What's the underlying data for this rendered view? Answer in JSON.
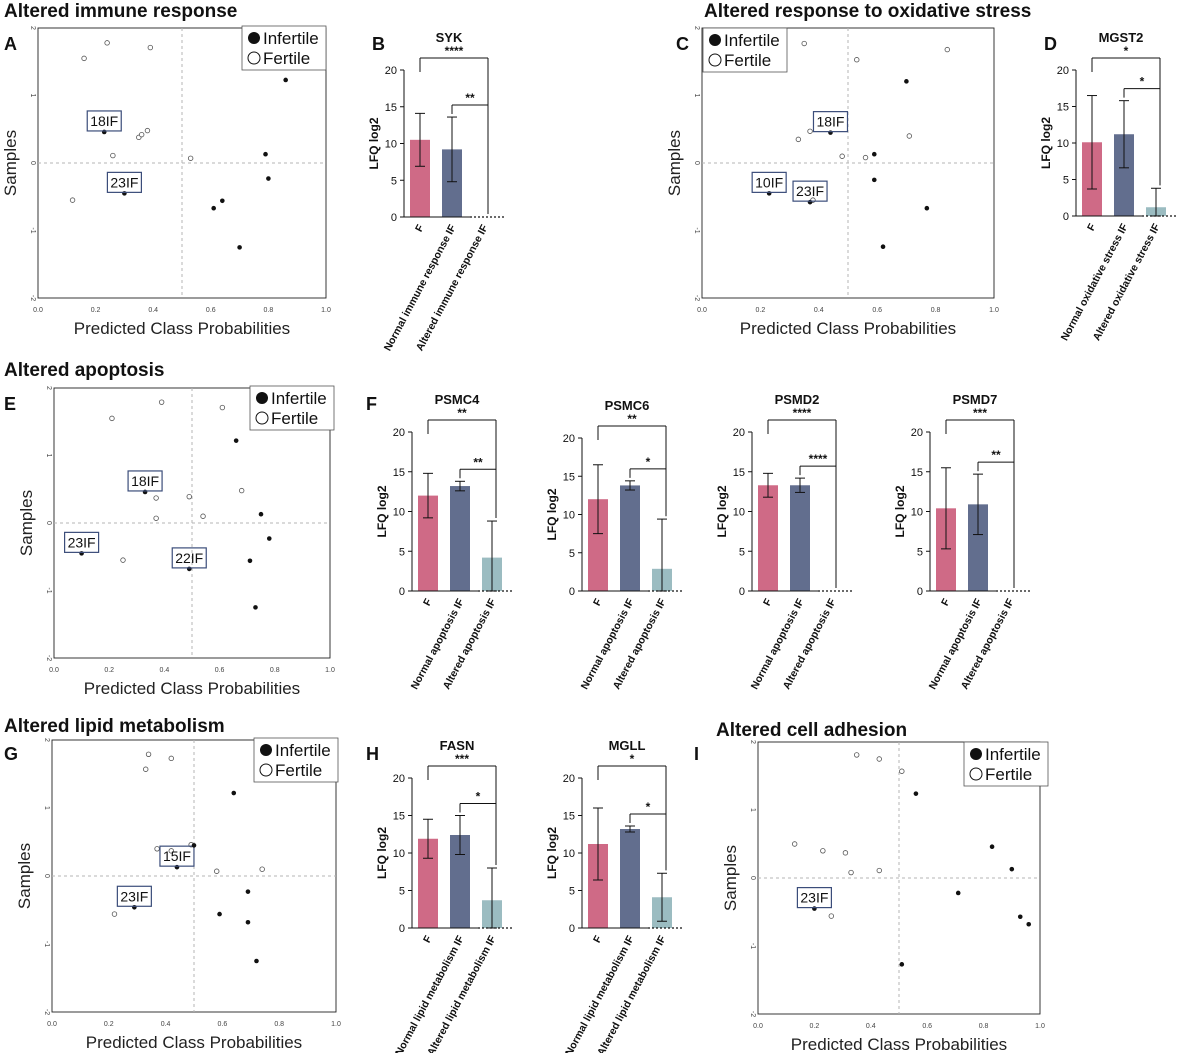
{
  "colors": {
    "female": "#cf6a86",
    "normal": "#626e8e",
    "altered": "#9bbcc1",
    "annot_border": "#3b4d7a",
    "grid": "#b5b5b5"
  },
  "legend": {
    "infertile": "Infertile",
    "fertile": "Fertile"
  },
  "common": {
    "scatter_xlabel": "Predicted Class Probabilities",
    "scatter_ylabel": "Samples",
    "bar_ylabel": "LFQ log2",
    "x_ticks": [
      "0.0",
      "0.2",
      "0.4",
      "0.6",
      "0.8",
      "1.0"
    ],
    "y_ticks": [
      "-2",
      "-1",
      "0",
      "1",
      "2"
    ]
  },
  "sections": [
    {
      "title": "Altered immune response"
    },
    {
      "title": "Altered response to oxidative stress"
    },
    {
      "title": "Altered apoptosis"
    },
    {
      "title": "Altered lipid metabolism"
    },
    {
      "title": "Altered cell adhesion"
    }
  ],
  "panel_letters": [
    "A",
    "B",
    "C",
    "D",
    "E",
    "F",
    "G",
    "H",
    "I"
  ],
  "chart_data": [
    {
      "panel": "A",
      "type": "scatter",
      "section": "Altered immune response",
      "xlabel": "Predicted Class Probabilities",
      "ylabel": "Samples",
      "xlim": [
        0,
        1
      ],
      "ylim": [
        -2,
        2
      ],
      "reference_lines": {
        "x": 0.5,
        "y": 0
      },
      "legend": [
        "Infertile",
        "Fertile"
      ],
      "points": [
        {
          "x": 0.16,
          "y": 1.55,
          "group": "fertile"
        },
        {
          "x": 0.24,
          "y": 1.78,
          "group": "fertile"
        },
        {
          "x": 0.39,
          "y": 1.71,
          "group": "fertile"
        },
        {
          "x": 0.35,
          "y": 0.38,
          "group": "fertile"
        },
        {
          "x": 0.36,
          "y": 0.42,
          "group": "fertile"
        },
        {
          "x": 0.38,
          "y": 0.48,
          "group": "fertile"
        },
        {
          "x": 0.26,
          "y": 0.11,
          "group": "fertile"
        },
        {
          "x": 0.53,
          "y": 0.07,
          "group": "fertile"
        },
        {
          "x": 0.12,
          "y": -0.55,
          "group": "fertile"
        },
        {
          "x": 0.23,
          "y": 0.46,
          "group": "infertile",
          "label": "18IF"
        },
        {
          "x": 0.3,
          "y": -0.45,
          "group": "infertile",
          "label": "23IF"
        },
        {
          "x": 0.86,
          "y": 1.23,
          "group": "infertile"
        },
        {
          "x": 0.79,
          "y": 0.13,
          "group": "infertile"
        },
        {
          "x": 0.8,
          "y": -0.23,
          "group": "infertile"
        },
        {
          "x": 0.64,
          "y": -0.56,
          "group": "infertile"
        },
        {
          "x": 0.61,
          "y": -0.67,
          "group": "infertile"
        },
        {
          "x": 0.7,
          "y": -1.25,
          "group": "infertile"
        }
      ]
    },
    {
      "panel": "B",
      "type": "bar",
      "title": "SYK",
      "ylabel": "LFQ log2",
      "ylim": [
        0,
        20
      ],
      "categories": [
        "F",
        "Normal immune response IF",
        "Altered immune response IF"
      ],
      "values": [
        10.5,
        9.2,
        0
      ],
      "errors": [
        3.6,
        4.4,
        0
      ],
      "significance": [
        {
          "from": 0,
          "to": 2,
          "label": "****"
        },
        {
          "from": 1,
          "to": 2,
          "label": "**"
        }
      ]
    },
    {
      "panel": "C",
      "type": "scatter",
      "section": "Altered response to oxidative stress",
      "xlabel": "Predicted Class Probabilities",
      "ylabel": "Samples",
      "xlim": [
        0,
        1
      ],
      "ylim": [
        -2,
        2
      ],
      "reference_lines": {
        "x": 0.5,
        "y": 0
      },
      "legend": [
        "Infertile",
        "Fertile"
      ],
      "points": [
        {
          "x": 0.35,
          "y": 1.77,
          "group": "fertile"
        },
        {
          "x": 0.53,
          "y": 1.53,
          "group": "fertile"
        },
        {
          "x": 0.84,
          "y": 1.68,
          "group": "fertile"
        },
        {
          "x": 0.33,
          "y": 0.35,
          "group": "fertile"
        },
        {
          "x": 0.37,
          "y": 0.47,
          "group": "fertile"
        },
        {
          "x": 0.48,
          "y": 0.1,
          "group": "fertile"
        },
        {
          "x": 0.56,
          "y": 0.08,
          "group": "fertile"
        },
        {
          "x": 0.71,
          "y": 0.4,
          "group": "fertile"
        },
        {
          "x": 0.38,
          "y": -0.55,
          "group": "fertile"
        },
        {
          "x": 0.44,
          "y": 0.45,
          "group": "infertile",
          "label": "18IF"
        },
        {
          "x": 0.23,
          "y": -0.45,
          "group": "infertile",
          "label": "10IF"
        },
        {
          "x": 0.37,
          "y": -0.58,
          "group": "infertile",
          "label": "23IF"
        },
        {
          "x": 0.7,
          "y": 1.21,
          "group": "infertile"
        },
        {
          "x": 0.59,
          "y": 0.13,
          "group": "infertile"
        },
        {
          "x": 0.59,
          "y": -0.25,
          "group": "infertile"
        },
        {
          "x": 0.77,
          "y": -0.67,
          "group": "infertile"
        },
        {
          "x": 0.62,
          "y": -1.24,
          "group": "infertile"
        }
      ]
    },
    {
      "panel": "D",
      "type": "bar",
      "title": "MGST2",
      "ylabel": "LFQ log2",
      "ylim": [
        0,
        20
      ],
      "categories": [
        "F",
        "Normal oxidative stress IF",
        "Altered oxidative stress IF"
      ],
      "values": [
        10.1,
        11.2,
        1.2
      ],
      "errors": [
        6.4,
        4.6,
        2.6
      ],
      "significance": [
        {
          "from": 0,
          "to": 2,
          "label": "*"
        },
        {
          "from": 1,
          "to": 2,
          "label": "*"
        }
      ]
    },
    {
      "panel": "E",
      "type": "scatter",
      "section": "Altered apoptosis",
      "xlabel": "Predicted Class Probabilities",
      "ylabel": "Samples",
      "xlim": [
        0,
        1
      ],
      "ylim": [
        -2,
        2
      ],
      "reference_lines": {
        "x": 0.5,
        "y": 0
      },
      "legend": [
        "Infertile",
        "Fertile"
      ],
      "points": [
        {
          "x": 0.21,
          "y": 1.55,
          "group": "fertile"
        },
        {
          "x": 0.39,
          "y": 1.79,
          "group": "fertile"
        },
        {
          "x": 0.61,
          "y": 1.71,
          "group": "fertile"
        },
        {
          "x": 0.37,
          "y": 0.37,
          "group": "fertile"
        },
        {
          "x": 0.49,
          "y": 0.39,
          "group": "fertile"
        },
        {
          "x": 0.54,
          "y": 0.1,
          "group": "fertile"
        },
        {
          "x": 0.68,
          "y": 0.48,
          "group": "fertile"
        },
        {
          "x": 0.37,
          "y": 0.07,
          "group": "fertile"
        },
        {
          "x": 0.25,
          "y": -0.55,
          "group": "fertile"
        },
        {
          "x": 0.33,
          "y": 0.46,
          "group": "infertile",
          "label": "18IF"
        },
        {
          "x": 0.1,
          "y": -0.45,
          "group": "infertile",
          "label": "23IF"
        },
        {
          "x": 0.49,
          "y": -0.68,
          "group": "infertile",
          "label": "22IF"
        },
        {
          "x": 0.66,
          "y": 1.22,
          "group": "infertile"
        },
        {
          "x": 0.75,
          "y": 0.13,
          "group": "infertile"
        },
        {
          "x": 0.78,
          "y": -0.23,
          "group": "infertile"
        },
        {
          "x": 0.71,
          "y": -0.56,
          "group": "infertile"
        },
        {
          "x": 0.73,
          "y": -1.25,
          "group": "infertile"
        }
      ]
    },
    {
      "panel": "F",
      "type": "bar",
      "title": "PSMC4",
      "ylabel": "LFQ log2",
      "ylim": [
        0,
        20
      ],
      "categories": [
        "F",
        "Normal apoptosis IF",
        "Altered apoptosis IF"
      ],
      "values": [
        12.0,
        13.2,
        4.2
      ],
      "errors": [
        2.8,
        0.6,
        4.6
      ],
      "significance": [
        {
          "from": 0,
          "to": 2,
          "label": "**"
        },
        {
          "from": 1,
          "to": 2,
          "label": "**"
        }
      ]
    },
    {
      "panel": "F",
      "type": "bar",
      "title": "PSMC6",
      "ylabel": "LFQ log2",
      "ylim": [
        0,
        20
      ],
      "categories": [
        "F",
        "Normal apoptosis IF",
        "Altered apoptosis IF"
      ],
      "values": [
        12.0,
        13.8,
        2.9
      ],
      "errors": [
        4.5,
        0.6,
        6.5
      ],
      "significance": [
        {
          "from": 0,
          "to": 2,
          "label": "**"
        },
        {
          "from": 1,
          "to": 2,
          "label": "*"
        }
      ]
    },
    {
      "panel": "F",
      "type": "bar",
      "title": "PSMD2",
      "ylabel": "LFQ log2",
      "ylim": [
        0,
        20
      ],
      "categories": [
        "F",
        "Normal apoptosis IF",
        "Altered apoptosis IF"
      ],
      "values": [
        13.3,
        13.3,
        0
      ],
      "errors": [
        1.5,
        0.9,
        0
      ],
      "significance": [
        {
          "from": 0,
          "to": 2,
          "label": "****"
        },
        {
          "from": 1,
          "to": 2,
          "label": "****"
        }
      ]
    },
    {
      "panel": "F",
      "type": "bar",
      "title": "PSMD7",
      "ylabel": "LFQ log2",
      "ylim": [
        0,
        20
      ],
      "categories": [
        "F",
        "Normal apoptosis IF",
        "Altered apoptosis IF"
      ],
      "values": [
        10.4,
        10.9,
        0
      ],
      "errors": [
        5.1,
        3.8,
        0
      ],
      "significance": [
        {
          "from": 0,
          "to": 2,
          "label": "***"
        },
        {
          "from": 1,
          "to": 2,
          "label": "**"
        }
      ]
    },
    {
      "panel": "G",
      "type": "scatter",
      "section": "Altered lipid metabolism",
      "xlabel": "Predicted Class Probabilities",
      "ylabel": "Samples",
      "xlim": [
        0,
        1
      ],
      "ylim": [
        -2,
        2
      ],
      "reference_lines": {
        "x": 0.5,
        "y": 0
      },
      "legend": [
        "Infertile",
        "Fertile"
      ],
      "points": [
        {
          "x": 0.33,
          "y": 1.57,
          "group": "fertile"
        },
        {
          "x": 0.34,
          "y": 1.79,
          "group": "fertile"
        },
        {
          "x": 0.42,
          "y": 1.73,
          "group": "fertile"
        },
        {
          "x": 0.37,
          "y": 0.4,
          "group": "fertile"
        },
        {
          "x": 0.42,
          "y": 0.37,
          "group": "fertile"
        },
        {
          "x": 0.49,
          "y": 0.46,
          "group": "fertile"
        },
        {
          "x": 0.58,
          "y": 0.07,
          "group": "fertile"
        },
        {
          "x": 0.74,
          "y": 0.1,
          "group": "fertile"
        },
        {
          "x": 0.22,
          "y": -0.56,
          "group": "fertile"
        },
        {
          "x": 0.44,
          "y": 0.13,
          "group": "infertile",
          "label": "15IF"
        },
        {
          "x": 0.29,
          "y": -0.46,
          "group": "infertile",
          "label": "23IF"
        },
        {
          "x": 0.5,
          "y": 0.45,
          "group": "infertile"
        },
        {
          "x": 0.64,
          "y": 1.22,
          "group": "infertile"
        },
        {
          "x": 0.69,
          "y": -0.23,
          "group": "infertile"
        },
        {
          "x": 0.59,
          "y": -0.56,
          "group": "infertile"
        },
        {
          "x": 0.69,
          "y": -0.68,
          "group": "infertile"
        },
        {
          "x": 0.72,
          "y": -1.25,
          "group": "infertile"
        }
      ]
    },
    {
      "panel": "H",
      "type": "bar",
      "title": "FASN",
      "ylabel": "LFQ log2",
      "ylim": [
        0,
        20
      ],
      "categories": [
        "F",
        "Normal lipid metabolism IF",
        "Altered lipid metabolism IF"
      ],
      "values": [
        11.9,
        12.4,
        3.7
      ],
      "errors": [
        2.6,
        2.6,
        4.3
      ],
      "significance": [
        {
          "from": 0,
          "to": 2,
          "label": "***"
        },
        {
          "from": 1,
          "to": 2,
          "label": "*"
        }
      ]
    },
    {
      "panel": "H",
      "type": "bar",
      "title": "MGLL",
      "ylabel": "LFQ log2",
      "ylim": [
        0,
        20
      ],
      "categories": [
        "F",
        "Normal lipid metabolism IF",
        "Altered lipid metabolism IF"
      ],
      "values": [
        11.2,
        13.2,
        4.1
      ],
      "errors": [
        4.8,
        0.4,
        3.2
      ],
      "significance": [
        {
          "from": 0,
          "to": 2,
          "label": "*"
        },
        {
          "from": 1,
          "to": 2,
          "label": "*"
        }
      ]
    },
    {
      "panel": "I",
      "type": "scatter",
      "section": "Altered cell adhesion",
      "xlabel": "Predicted Class Probabilities",
      "ylabel": "Samples",
      "xlim": [
        0,
        1
      ],
      "ylim": [
        -2,
        2
      ],
      "reference_lines": {
        "x": 0.5,
        "y": 0
      },
      "legend": [
        "Infertile",
        "Fertile"
      ],
      "points": [
        {
          "x": 0.35,
          "y": 1.81,
          "group": "fertile"
        },
        {
          "x": 0.43,
          "y": 1.75,
          "group": "fertile"
        },
        {
          "x": 0.51,
          "y": 1.57,
          "group": "fertile"
        },
        {
          "x": 0.13,
          "y": 0.5,
          "group": "fertile"
        },
        {
          "x": 0.23,
          "y": 0.4,
          "group": "fertile"
        },
        {
          "x": 0.31,
          "y": 0.37,
          "group": "fertile"
        },
        {
          "x": 0.33,
          "y": 0.08,
          "group": "fertile"
        },
        {
          "x": 0.43,
          "y": 0.11,
          "group": "fertile"
        },
        {
          "x": 0.26,
          "y": -0.56,
          "group": "fertile"
        },
        {
          "x": 0.2,
          "y": -0.45,
          "group": "infertile",
          "label": "23IF"
        },
        {
          "x": 0.56,
          "y": 1.24,
          "group": "infertile"
        },
        {
          "x": 0.83,
          "y": 0.46,
          "group": "infertile"
        },
        {
          "x": 0.9,
          "y": 0.13,
          "group": "infertile"
        },
        {
          "x": 0.71,
          "y": -0.22,
          "group": "infertile"
        },
        {
          "x": 0.93,
          "y": -0.57,
          "group": "infertile"
        },
        {
          "x": 0.96,
          "y": -0.68,
          "group": "infertile"
        },
        {
          "x": 0.51,
          "y": -1.27,
          "group": "infertile"
        }
      ]
    }
  ]
}
